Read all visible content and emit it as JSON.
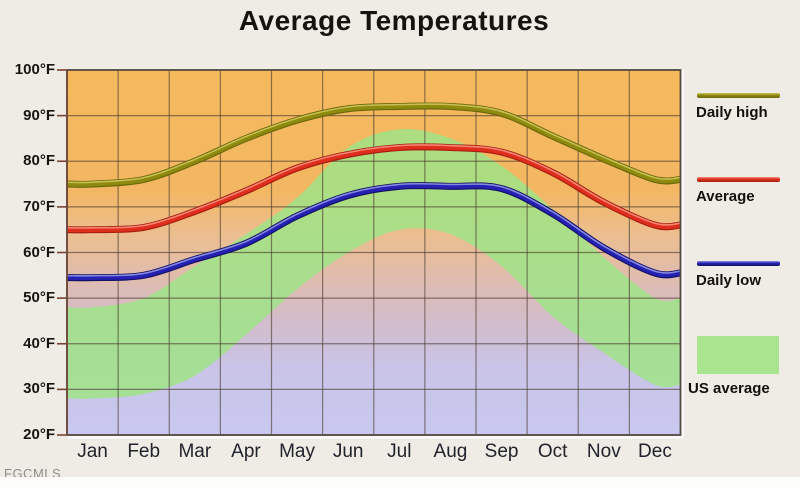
{
  "title": "Average Temperatures",
  "watermark": "FGCMLS",
  "y_axis": {
    "labels": [
      "100°F",
      "90°F",
      "80°F",
      "70°F",
      "60°F",
      "50°F",
      "40°F",
      "30°F",
      "20°F"
    ]
  },
  "legend": {
    "items": [
      {
        "label": "Daily high"
      },
      {
        "label": "Average"
      },
      {
        "label": "Daily low"
      },
      {
        "label": "US average"
      }
    ]
  },
  "chart_data": {
    "type": "line",
    "title": "Average Temperatures",
    "x": [
      "Jan",
      "Feb",
      "Mar",
      "Apr",
      "May",
      "Jun",
      "Jul",
      "Aug",
      "Sep",
      "Oct",
      "Nov",
      "Dec"
    ],
    "ylim": [
      20,
      100
    ],
    "yticks": [
      100,
      90,
      80,
      70,
      60,
      50,
      40,
      30,
      20
    ],
    "grid": true,
    "legend_position": "right",
    "series": [
      {
        "name": "Daily high",
        "color": "#8e8a10",
        "edge": "#6c680a",
        "highlight": "#cdc75a",
        "values": [
          75,
          76,
          80,
          85,
          89,
          91.5,
          92,
          92,
          90.5,
          85.5,
          80.5,
          76
        ]
      },
      {
        "name": "Average",
        "color": "#df2e1d",
        "edge": "#a81d10",
        "highlight": "#f8907c",
        "values": [
          65,
          65.5,
          69,
          73.5,
          78.5,
          81.5,
          83,
          83,
          82,
          77.5,
          71,
          66
        ]
      },
      {
        "name": "Daily low",
        "color": "#2521b2",
        "edge": "#131066",
        "highlight": "#9095e4",
        "values": [
          54.5,
          55,
          58.5,
          62,
          68,
          72.5,
          74.5,
          74.5,
          74,
          68.5,
          61,
          55.5
        ]
      }
    ],
    "band": {
      "name": "US average",
      "color": "#9fe487",
      "opacity": 0.85,
      "top": [
        48,
        50,
        57,
        64,
        72,
        83,
        87,
        85,
        79,
        69.5,
        59,
        50
      ],
      "bottom": [
        28,
        29,
        33,
        42,
        52,
        60,
        65,
        64,
        57,
        46,
        38,
        31
      ]
    },
    "background_gradient": [
      {
        "offset": 0,
        "color": "#f5b95c"
      },
      {
        "offset": 0.33,
        "color": "#f3b763"
      },
      {
        "offset": 0.45,
        "color": "#ecbe90"
      },
      {
        "offset": 0.57,
        "color": "#dfbcae"
      },
      {
        "offset": 0.69,
        "color": "#d2bdcb"
      },
      {
        "offset": 0.81,
        "color": "#c9c4e7"
      },
      {
        "offset": 1,
        "color": "#c9c8f0"
      }
    ],
    "grid_color": "rgba(74,60,48,0.62)",
    "border_color": "#554b41",
    "tick_color": "#7a4330",
    "legend_swatch_green": "#a9e58e"
  }
}
